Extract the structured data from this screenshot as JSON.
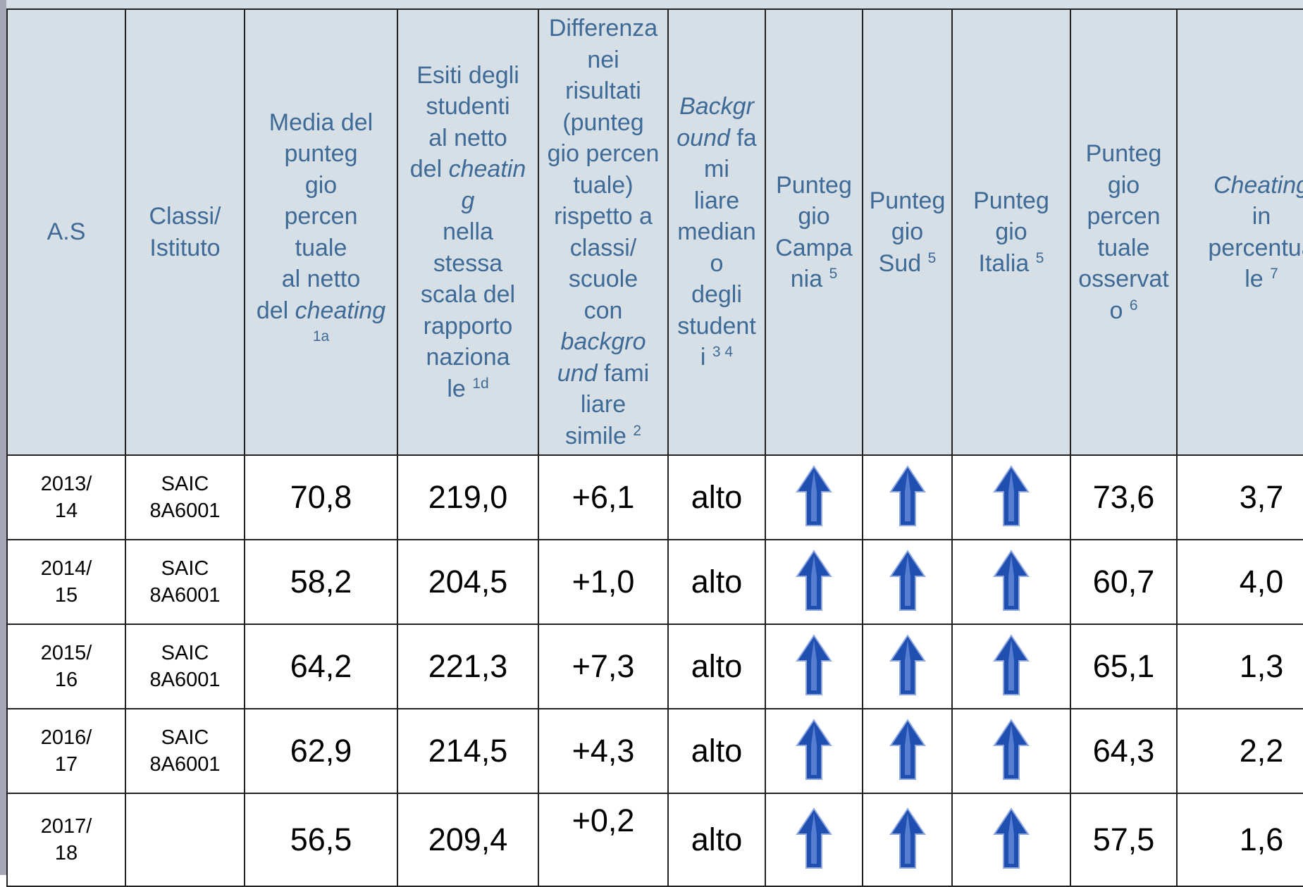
{
  "table": {
    "header": [
      [
        [
          {
            "text": "A.S"
          }
        ]
      ],
      [
        [
          {
            "text": "Classi/"
          }
        ],
        [
          {
            "text": "Istituto"
          }
        ]
      ],
      [
        [
          {
            "text": "Media del"
          }
        ],
        [
          {
            "text": "punteg"
          }
        ],
        [
          {
            "text": "gio"
          }
        ],
        [
          {
            "text": "percen"
          }
        ],
        [
          {
            "text": "tuale"
          }
        ],
        [
          {
            "text": "al netto"
          }
        ],
        [
          {
            "text": "del "
          },
          {
            "text": "cheating",
            "italic": true
          }
        ],
        [
          {
            "text": "1a",
            "sup": true
          }
        ]
      ],
      [
        [
          {
            "text": "Esiti degli"
          }
        ],
        [
          {
            "text": "studenti"
          }
        ],
        [
          {
            "text": "al netto"
          }
        ],
        [
          {
            "text": "del "
          },
          {
            "text": "cheatin",
            "italic": true
          }
        ],
        [
          {
            "text": "g",
            "italic": true
          }
        ],
        [
          {
            "text": "nella"
          }
        ],
        [
          {
            "text": "stessa"
          }
        ],
        [
          {
            "text": "scala del"
          }
        ],
        [
          {
            "text": "rapporto"
          }
        ],
        [
          {
            "text": "naziona"
          }
        ],
        [
          {
            "text": "le "
          },
          {
            "text": "1d",
            "sup": true
          }
        ]
      ],
      [
        [
          {
            "text": "Differenza"
          }
        ],
        [
          {
            "text": "nei"
          }
        ],
        [
          {
            "text": "risultati"
          }
        ],
        [
          {
            "text": "(punteg"
          }
        ],
        [
          {
            "text": "gio percen"
          }
        ],
        [
          {
            "text": "tuale)"
          }
        ],
        [
          {
            "text": "rispetto a"
          }
        ],
        [
          {
            "text": "classi/"
          }
        ],
        [
          {
            "text": "scuole"
          }
        ],
        [
          {
            "text": "con"
          }
        ],
        [
          {
            "text": "backgro",
            "italic": true
          }
        ],
        [
          {
            "text": "und",
            "italic": true
          },
          {
            "text": " fami"
          }
        ],
        [
          {
            "text": "liare"
          }
        ],
        [
          {
            "text": "simile "
          },
          {
            "text": "2",
            "sup": true
          }
        ]
      ],
      [
        [
          {
            "text": "Backgr",
            "italic": true
          }
        ],
        [
          {
            "text": "ound",
            "italic": true
          },
          {
            "text": " fa"
          }
        ],
        [
          {
            "text": "mi"
          }
        ],
        [
          {
            "text": "liare"
          }
        ],
        [
          {
            "text": "median"
          }
        ],
        [
          {
            "text": "o"
          }
        ],
        [
          {
            "text": "degli"
          }
        ],
        [
          {
            "text": "student"
          }
        ],
        [
          {
            "text": "i "
          },
          {
            "text": "3 4",
            "sup": true
          }
        ]
      ],
      [
        [
          {
            "text": "Punteg"
          }
        ],
        [
          {
            "text": "gio"
          }
        ],
        [
          {
            "text": "Campa"
          }
        ],
        [
          {
            "text": "nia "
          },
          {
            "text": "5",
            "sup": true
          }
        ]
      ],
      [
        [
          {
            "text": "Punteg"
          }
        ],
        [
          {
            "text": "gio"
          }
        ],
        [
          {
            "text": "Sud "
          },
          {
            "text": "5",
            "sup": true
          }
        ]
      ],
      [
        [
          {
            "text": "Punteg"
          }
        ],
        [
          {
            "text": "gio"
          }
        ],
        [
          {
            "text": "Italia "
          },
          {
            "text": "5",
            "sup": true
          }
        ]
      ],
      [
        [
          {
            "text": "Punteg"
          }
        ],
        [
          {
            "text": "gio"
          }
        ],
        [
          {
            "text": "percen"
          }
        ],
        [
          {
            "text": "tuale"
          }
        ],
        [
          {
            "text": "osservat"
          }
        ],
        [
          {
            "text": "o "
          },
          {
            "text": "6",
            "sup": true
          }
        ]
      ],
      [
        [
          {
            "text": "Cheating",
            "italic": true
          }
        ],
        [
          {
            "text": "in"
          }
        ],
        [
          {
            "text": "percentua"
          }
        ],
        [
          {
            "text": "le "
          },
          {
            "text": "7",
            "sup": true
          }
        ]
      ]
    ],
    "rows": [
      {
        "year": [
          "2013/",
          "14"
        ],
        "school": [
          "SAIC",
          "8A6001"
        ],
        "values": [
          "70,8",
          "219,0",
          "+6,1",
          "alto",
          "73,6",
          "3,7"
        ]
      },
      {
        "year": [
          "2014/",
          "15"
        ],
        "school": [
          "SAIC",
          "8A6001"
        ],
        "values": [
          "58,2",
          "204,5",
          "+1,0",
          "alto",
          "60,7",
          "4,0"
        ]
      },
      {
        "year": [
          "2015/",
          "16"
        ],
        "school": [
          "SAIC",
          "8A6001"
        ],
        "values": [
          "64,2",
          "221,3",
          "+7,3",
          "alto",
          "65,1",
          "1,3"
        ]
      },
      {
        "year": [
          "2016/",
          "17"
        ],
        "school": [
          "SAIC",
          "8A6001"
        ],
        "values": [
          "62,9",
          "214,5",
          "+4,3",
          "alto",
          "64,3",
          "2,2"
        ]
      },
      {
        "year": [
          "2017/",
          "18"
        ],
        "school": null,
        "values": [
          "56,5",
          "209,4",
          "+0,2",
          "alto",
          "57,5",
          "1,6"
        ]
      }
    ]
  }
}
